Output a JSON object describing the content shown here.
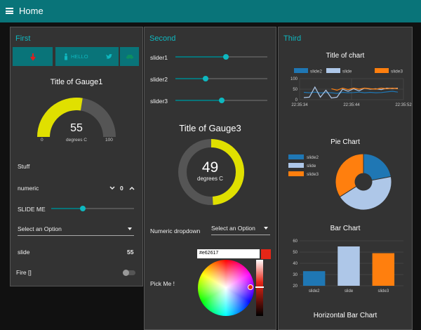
{
  "topbar": {
    "title": "Home",
    "menu_icon": "hamburger-menu-icon",
    "color": "#097479"
  },
  "accent": "#0eb8c0",
  "first": {
    "title": "First",
    "buttons": [
      {
        "icon": "arrow-down-icon",
        "label": ""
      },
      {
        "icon": "person-icon",
        "label": "HELLO"
      },
      {
        "icon": "twitter-icon",
        "label": ""
      },
      {
        "icon": "car-icon",
        "label": ""
      }
    ],
    "gauge": {
      "title": "Title of Gauge1",
      "value": "55",
      "units": "degrees C",
      "min": "0",
      "max": "100",
      "level": 0.55,
      "color": "#e0e000"
    },
    "stuff_label": "Stuff",
    "numeric": {
      "label": "numeric",
      "value": "0"
    },
    "slider": {
      "label": "SLIDE ME",
      "level": 0.38
    },
    "select": {
      "placeholder": "Select an Option"
    },
    "slide": {
      "label": "slide",
      "value": "55"
    },
    "fire": {
      "label": "Fire []",
      "on": false
    }
  },
  "second": {
    "title": "Second",
    "sliders": [
      {
        "label": "slider1",
        "level": 0.55
      },
      {
        "label": "slider2",
        "level": 0.33
      },
      {
        "label": "slider3",
        "level": 0.5
      }
    ],
    "gauge": {
      "title": "Title of Gauge3",
      "value": "49",
      "units": "degrees C",
      "level": 0.49,
      "color": "#e0e000"
    },
    "numeric_dropdown": {
      "label": "Numeric dropdown",
      "placeholder": "Select an Option"
    },
    "pick": {
      "label": "Pick Me !",
      "hex": "#e62617",
      "swatch": "#e62617"
    }
  },
  "third": {
    "title": "Third",
    "line_chart": {
      "title": "Title of chart",
      "legend": [
        "slide2",
        "slide",
        "slide3"
      ],
      "yticks": [
        "100",
        "50",
        "0"
      ],
      "xticks": [
        "22:35:34",
        "22:35:44",
        "22:35:52"
      ]
    },
    "pie_chart": {
      "title": "Pie Chart",
      "legend": [
        "slide2",
        "slide",
        "slide3"
      ]
    },
    "bar_chart": {
      "title": "Bar Chart",
      "yticks": [
        "60",
        "50",
        "40",
        "30",
        "20"
      ],
      "categories": [
        "slide2",
        "slide",
        "slide3"
      ]
    },
    "hbar_title": "Horizontal Bar Chart"
  },
  "chart_data": [
    {
      "type": "line",
      "title": "Title of chart",
      "ylim": [
        0,
        100
      ],
      "x_ticks": [
        "22:35:34",
        "22:35:44",
        "22:35:52"
      ],
      "series": [
        {
          "name": "slide2",
          "color": "#1f77b4",
          "values": [
            35,
            33,
            36,
            32,
            34,
            33,
            30,
            35,
            33,
            34,
            36,
            33,
            35,
            33,
            34,
            37,
            40,
            36
          ]
        },
        {
          "name": "slide",
          "color": "#aec7e8",
          "values": [
            10,
            12,
            60,
            12,
            45,
            8,
            12,
            50,
            40,
            52,
            42,
            55,
            50,
            52,
            48,
            55,
            53,
            55
          ]
        },
        {
          "name": "slide3",
          "color": "#ff7f0e",
          "values": [
            null,
            null,
            null,
            null,
            null,
            52,
            45,
            55,
            48,
            55,
            50,
            55,
            52,
            50,
            55,
            52,
            55,
            52
          ]
        }
      ]
    },
    {
      "type": "pie",
      "title": "Pie Chart",
      "categories": [
        "slide2",
        "slide",
        "slide3"
      ],
      "values": [
        22,
        44,
        34
      ],
      "colors": [
        "#1f77b4",
        "#aec7e8",
        "#ff7f0e"
      ]
    },
    {
      "type": "bar",
      "title": "Bar Chart",
      "categories": [
        "slide2",
        "slide",
        "slide3"
      ],
      "values": [
        33,
        55,
        49
      ],
      "ylim": [
        20,
        60
      ],
      "colors": [
        "#1f77b4",
        "#aec7e8",
        "#ff7f0e"
      ]
    }
  ]
}
